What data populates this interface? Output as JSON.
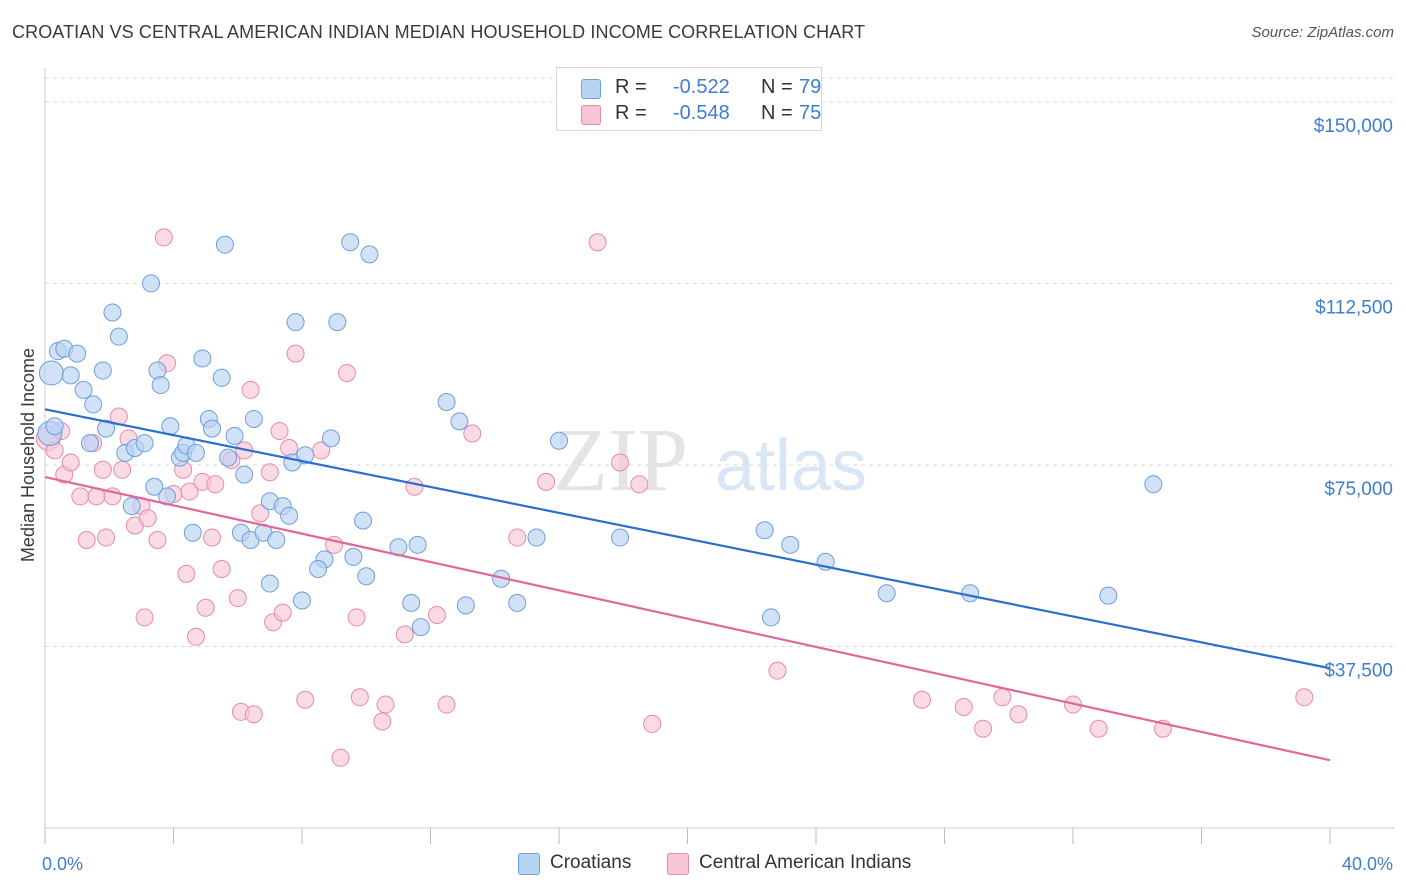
{
  "title": "CROATIAN VS CENTRAL AMERICAN INDIAN MEDIAN HOUSEHOLD INCOME CORRELATION CHART",
  "source": "Source: ZipAtlas.com",
  "watermark": {
    "zip": "ZIP",
    "atlas": "atlas"
  },
  "legend": {
    "rows": [
      {
        "r_label": "R =",
        "r_value": "-0.522",
        "n_label": "N =",
        "n_value": "79"
      },
      {
        "r_label": "R =",
        "r_value": "-0.548",
        "n_label": "N =",
        "n_value": "75"
      }
    ]
  },
  "bottom_legend": [
    {
      "label": "Croatians"
    },
    {
      "label": "Central American Indians"
    }
  ],
  "colors": {
    "blue_fill": "#b9d3f3",
    "blue_stroke": "#6c9fdc",
    "blue_line": "#2c6fcb",
    "pink_fill": "#f7c6d6",
    "pink_stroke": "#e88aaa",
    "pink_line": "#e0679a",
    "tick_text": "#3f7dd1",
    "grid": "#d9d9d9"
  },
  "chart_data": {
    "type": "scatter",
    "title": "CROATIAN VS CENTRAL AMERICAN INDIAN MEDIAN HOUSEHOLD INCOME CORRELATION CHART",
    "xlabel": "",
    "ylabel": "Median Household Income",
    "xlim": [
      0,
      40
    ],
    "ylim": [
      0,
      157000
    ],
    "x_tick_labels": [
      "0.0%",
      "40.0%"
    ],
    "x_tick_values": [
      0,
      40
    ],
    "y_tick_values": [
      37500,
      75000,
      112500,
      150000
    ],
    "y_tick_labels": [
      "$37,500",
      "$75,000",
      "$112,500",
      "$150,000"
    ],
    "grid": true,
    "legend_position": "top-center",
    "series": [
      {
        "name": "Croatians",
        "color": "#6c9fdc",
        "trend": {
          "x": [
            0,
            40
          ],
          "y": [
            86500,
            33000
          ]
        },
        "points": [
          [
            0.2,
            94000
          ],
          [
            0.4,
            98500
          ],
          [
            0.6,
            99000
          ],
          [
            0.8,
            93500
          ],
          [
            1.0,
            98000
          ],
          [
            1.2,
            90500
          ],
          [
            1.5,
            87500
          ],
          [
            1.8,
            94500
          ],
          [
            2.1,
            106500
          ],
          [
            2.3,
            101500
          ],
          [
            1.4,
            79500
          ],
          [
            1.9,
            82500
          ],
          [
            2.5,
            77500
          ],
          [
            2.8,
            78500
          ],
          [
            3.1,
            79500
          ],
          [
            3.3,
            112500
          ],
          [
            3.5,
            94500
          ],
          [
            3.6,
            91500
          ],
          [
            3.8,
            68500
          ],
          [
            4.2,
            76500
          ],
          [
            4.3,
            77500
          ],
          [
            4.4,
            79000
          ],
          [
            4.7,
            77500
          ],
          [
            5.1,
            84500
          ],
          [
            5.2,
            82500
          ],
          [
            5.5,
            93000
          ],
          [
            5.7,
            76500
          ],
          [
            5.9,
            81000
          ],
          [
            6.2,
            73000
          ],
          [
            6.5,
            84500
          ],
          [
            4.9,
            97000
          ],
          [
            5.6,
            120500
          ],
          [
            2.7,
            66500
          ],
          [
            3.4,
            70500
          ],
          [
            4.6,
            61000
          ],
          [
            6.1,
            61000
          ],
          [
            6.4,
            59500
          ],
          [
            6.8,
            61000
          ],
          [
            7.0,
            67500
          ],
          [
            7.2,
            59500
          ],
          [
            7.4,
            66500
          ],
          [
            7.6,
            64500
          ],
          [
            7.7,
            75500
          ],
          [
            8.1,
            77000
          ],
          [
            7.8,
            104500
          ],
          [
            9.1,
            104500
          ],
          [
            8.9,
            80500
          ],
          [
            9.5,
            121000
          ],
          [
            10.1,
            118500
          ],
          [
            9.9,
            63500
          ],
          [
            8.7,
            55500
          ],
          [
            8.5,
            53500
          ],
          [
            8.0,
            47000
          ],
          [
            7.0,
            50500
          ],
          [
            9.6,
            56000
          ],
          [
            10.0,
            52000
          ],
          [
            11.0,
            58000
          ],
          [
            11.6,
            58500
          ],
          [
            11.4,
            46500
          ],
          [
            11.7,
            41500
          ],
          [
            12.5,
            88000
          ],
          [
            12.9,
            84000
          ],
          [
            13.1,
            46000
          ],
          [
            14.2,
            51500
          ],
          [
            14.7,
            46500
          ],
          [
            16.0,
            80000
          ],
          [
            15.3,
            60000
          ],
          [
            17.9,
            60000
          ],
          [
            22.4,
            61500
          ],
          [
            22.6,
            43500
          ],
          [
            23.2,
            58500
          ],
          [
            24.3,
            55000
          ],
          [
            26.2,
            48500
          ],
          [
            28.8,
            48500
          ],
          [
            33.1,
            48000
          ],
          [
            34.5,
            71000
          ],
          [
            0.15,
            81500
          ],
          [
            0.3,
            83000
          ],
          [
            3.9,
            83000
          ]
        ]
      },
      {
        "name": "Central American Indians",
        "color": "#e88aaa",
        "trend": {
          "x": [
            0,
            40
          ],
          "y": [
            72500,
            14000
          ]
        },
        "points": [
          [
            0.1,
            80500
          ],
          [
            0.3,
            78000
          ],
          [
            0.6,
            73000
          ],
          [
            0.8,
            75500
          ],
          [
            1.1,
            68500
          ],
          [
            1.3,
            59500
          ],
          [
            1.5,
            79500
          ],
          [
            1.6,
            68500
          ],
          [
            1.8,
            74000
          ],
          [
            1.9,
            60000
          ],
          [
            2.3,
            85000
          ],
          [
            2.1,
            68500
          ],
          [
            2.6,
            80500
          ],
          [
            2.8,
            62500
          ],
          [
            3.0,
            66500
          ],
          [
            3.2,
            64000
          ],
          [
            3.5,
            59500
          ],
          [
            3.7,
            122000
          ],
          [
            3.8,
            96000
          ],
          [
            4.0,
            69000
          ],
          [
            4.3,
            74000
          ],
          [
            4.4,
            52500
          ],
          [
            4.5,
            69500
          ],
          [
            4.9,
            71500
          ],
          [
            5.0,
            45500
          ],
          [
            5.2,
            60000
          ],
          [
            5.3,
            71000
          ],
          [
            5.5,
            53500
          ],
          [
            5.8,
            76000
          ],
          [
            6.0,
            47500
          ],
          [
            6.2,
            78000
          ],
          [
            6.4,
            90500
          ],
          [
            6.7,
            65000
          ],
          [
            7.0,
            73500
          ],
          [
            7.3,
            82000
          ],
          [
            7.6,
            78500
          ],
          [
            7.8,
            98000
          ],
          [
            7.1,
            42500
          ],
          [
            7.4,
            44500
          ],
          [
            4.7,
            39500
          ],
          [
            3.1,
            43500
          ],
          [
            6.1,
            24000
          ],
          [
            6.5,
            23500
          ],
          [
            8.1,
            26500
          ],
          [
            9.0,
            58500
          ],
          [
            9.4,
            94000
          ],
          [
            9.7,
            43500
          ],
          [
            9.8,
            27000
          ],
          [
            10.5,
            22000
          ],
          [
            10.6,
            25500
          ],
          [
            11.2,
            40000
          ],
          [
            11.5,
            70500
          ],
          [
            12.2,
            44000
          ],
          [
            12.5,
            25500
          ],
          [
            13.3,
            81500
          ],
          [
            14.7,
            60000
          ],
          [
            15.6,
            71500
          ],
          [
            17.2,
            121000
          ],
          [
            17.9,
            75500
          ],
          [
            18.5,
            71000
          ],
          [
            18.9,
            21500
          ],
          [
            22.8,
            32500
          ],
          [
            27.3,
            26500
          ],
          [
            28.6,
            25000
          ],
          [
            29.2,
            20500
          ],
          [
            29.8,
            27000
          ],
          [
            30.3,
            23500
          ],
          [
            32.0,
            25500
          ],
          [
            32.8,
            20500
          ],
          [
            34.8,
            20500
          ],
          [
            39.2,
            27000
          ],
          [
            9.2,
            14500
          ],
          [
            8.6,
            78000
          ],
          [
            2.4,
            74000
          ],
          [
            0.5,
            82000
          ]
        ]
      }
    ]
  }
}
